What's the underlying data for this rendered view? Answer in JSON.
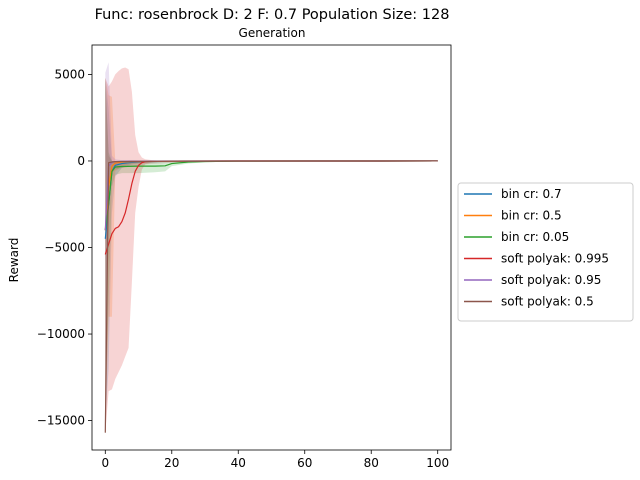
{
  "chart_data": {
    "type": "line",
    "title": "Func: rosenbrock D: 2 F: 0.7 Population Size: 128",
    "subtitle": "Generation",
    "xlabel": "",
    "ylabel": "Reward",
    "xlim": [
      -4,
      104
    ],
    "ylim": [
      -16700,
      6700
    ],
    "xticks": [
      0,
      20,
      40,
      60,
      80,
      100
    ],
    "yticks": [
      5000,
      0,
      -5000,
      -10000,
      -15000
    ],
    "xtick_labels": [
      "0",
      "20",
      "40",
      "60",
      "80",
      "100"
    ],
    "ytick_labels": [
      "5000",
      "0",
      "−5000",
      "−10000",
      "−15000"
    ],
    "grid": false,
    "legend_position": "right, outside plot",
    "series": [
      {
        "name": "bin cr: 0.7",
        "color": "#1f77b4",
        "x": [
          0,
          1,
          2,
          3,
          5,
          8,
          12,
          20,
          40,
          60,
          100
        ],
        "y": [
          -4500,
          -2500,
          -600,
          -250,
          -150,
          -80,
          -40,
          -15,
          -3,
          -1,
          0
        ],
        "band_lower": [
          -15000,
          -12000,
          -3000,
          -900,
          -400,
          -200,
          -100,
          -30,
          -5,
          -1,
          0
        ],
        "band_upper": [
          4800,
          3000,
          0,
          0,
          0,
          0,
          0,
          0,
          0,
          0,
          0
        ]
      },
      {
        "name": "bin cr: 0.5",
        "color": "#ff7f0e",
        "x": [
          0,
          1,
          2,
          3,
          5,
          8,
          12,
          20,
          40,
          60,
          100
        ],
        "y": [
          -4000,
          -1500,
          -300,
          -120,
          -60,
          -40,
          -30,
          -15,
          -3,
          -1,
          0
        ],
        "band_lower": [
          -15500,
          -9000,
          -9000,
          -600,
          -300,
          -150,
          -80,
          -30,
          -5,
          -1,
          0
        ],
        "band_upper": [
          4800,
          3800,
          3700,
          0,
          0,
          0,
          0,
          0,
          0,
          0,
          0
        ]
      },
      {
        "name": "bin cr: 0.05",
        "color": "#2ca02c",
        "x": [
          0,
          1,
          2,
          3,
          5,
          10,
          15,
          18,
          20,
          25,
          30,
          40,
          60,
          100
        ],
        "y": [
          -4000,
          -2500,
          -600,
          -350,
          -320,
          -300,
          -300,
          -280,
          -150,
          -60,
          -30,
          -10,
          -2,
          0
        ],
        "band_lower": [
          -15000,
          -8000,
          -1500,
          -800,
          -700,
          -700,
          -650,
          -600,
          -300,
          -150,
          -80,
          -20,
          -5,
          0
        ],
        "band_upper": [
          4800,
          500,
          0,
          0,
          0,
          0,
          0,
          0,
          0,
          0,
          0,
          0,
          0,
          0
        ]
      },
      {
        "name": "soft polyak: 0.995",
        "color": "#d62728",
        "x": [
          0,
          1,
          2,
          3,
          4,
          5,
          6,
          7,
          8,
          9,
          10,
          11,
          12,
          14,
          16,
          20,
          30,
          40,
          100
        ],
        "y": [
          -5400,
          -4800,
          -4200,
          -3900,
          -3800,
          -3500,
          -3000,
          -2200,
          -1300,
          -600,
          -250,
          -100,
          -40,
          -20,
          -10,
          -5,
          -2,
          -1,
          0
        ],
        "band_lower": [
          -15700,
          -13300,
          -13200,
          -12600,
          -12200,
          -11800,
          -11300,
          -10800,
          -7000,
          -3000,
          -1500,
          -500,
          -200,
          -100,
          -50,
          -20,
          -5,
          -2,
          0
        ],
        "band_upper": [
          4800,
          4300,
          4600,
          5000,
          5200,
          5350,
          5400,
          5300,
          4000,
          1500,
          500,
          200,
          100,
          50,
          20,
          10,
          5,
          2,
          0
        ]
      },
      {
        "name": "soft polyak: 0.95",
        "color": "#9467bd",
        "x": [
          0,
          1,
          2,
          3,
          5,
          8,
          12,
          20,
          40,
          100
        ],
        "y": [
          -4000,
          -300,
          -80,
          -40,
          -20,
          -10,
          -5,
          -2,
          -1,
          0
        ],
        "band_lower": [
          -15500,
          -3000,
          -500,
          -200,
          -80,
          -40,
          -20,
          -10,
          -2,
          0
        ],
        "band_upper": [
          5100,
          5700,
          300,
          100,
          50,
          30,
          20,
          10,
          2,
          0
        ]
      },
      {
        "name": "soft polyak: 0.5",
        "color": "#8c564b",
        "x": [
          0,
          1,
          2,
          3,
          5,
          8,
          12,
          20,
          40,
          100
        ],
        "y": [
          -15700,
          -100,
          -60,
          -40,
          -30,
          -25,
          -20,
          -10,
          -2,
          0
        ],
        "band_lower": [
          -15700,
          -1200,
          -700,
          -500,
          -400,
          -300,
          -200,
          -100,
          -10,
          0
        ],
        "band_upper": [
          4800,
          300,
          0,
          0,
          0,
          0,
          0,
          0,
          0,
          0
        ]
      }
    ]
  }
}
